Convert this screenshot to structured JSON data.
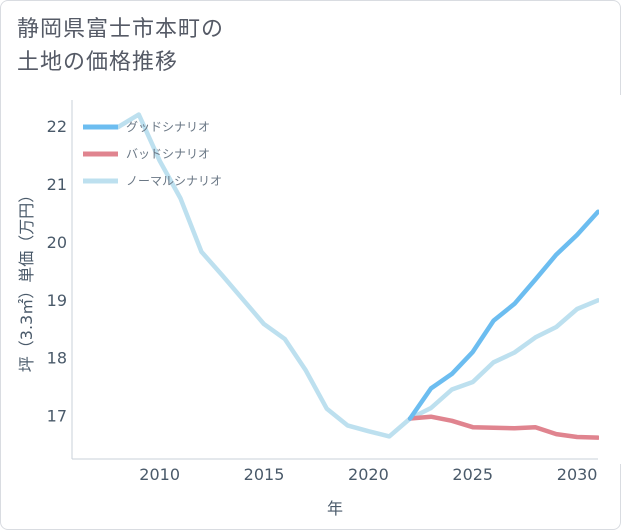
{
  "chart_data": {
    "type": "line",
    "title_lines": [
      "静岡県富士市本町の",
      "土地の価格推移"
    ],
    "xlabel": "年",
    "ylabel": "坪（3.3㎡）単価（万円）",
    "xlim": [
      2005.8,
      2031
    ],
    "ylim": [
      16.25,
      22.45
    ],
    "x_ticks": [
      2010,
      2015,
      2020,
      2025,
      2030
    ],
    "y_ticks": [
      17,
      18,
      19,
      20,
      21,
      22
    ],
    "legend_position": "top-left",
    "series": [
      {
        "name": "グッドシナリオ",
        "color": "#6cbdf0",
        "x": [
          2022,
          2023,
          2024,
          2025,
          2026,
          2027,
          2028,
          2029,
          2030,
          2031
        ],
        "y": [
          16.95,
          17.47,
          17.72,
          18.1,
          18.64,
          18.93,
          19.35,
          19.78,
          20.12,
          20.52
        ]
      },
      {
        "name": "バッドシナリオ",
        "color": "#e0848f",
        "x": [
          2022,
          2023,
          2024,
          2025,
          2026,
          2027,
          2028,
          2029,
          2030,
          2031
        ],
        "y": [
          16.95,
          16.98,
          16.91,
          16.8,
          16.79,
          16.78,
          16.8,
          16.68,
          16.63,
          16.62
        ]
      },
      {
        "name": "ノーマルシナリオ",
        "color": "#bde0ef",
        "x": [
          2008,
          2009,
          2010,
          2011,
          2012,
          2013,
          2014,
          2015,
          2016,
          2017,
          2018,
          2019,
          2020,
          2021,
          2022,
          2023,
          2024,
          2025,
          2026,
          2027,
          2028,
          2029,
          2030,
          2031
        ],
        "y": [
          21.98,
          22.2,
          21.4,
          20.75,
          19.83,
          19.42,
          19.0,
          18.58,
          18.32,
          17.78,
          17.12,
          16.83,
          16.73,
          16.64,
          16.95,
          17.13,
          17.45,
          17.58,
          17.92,
          18.09,
          18.35,
          18.53,
          18.84,
          18.99
        ]
      }
    ]
  }
}
